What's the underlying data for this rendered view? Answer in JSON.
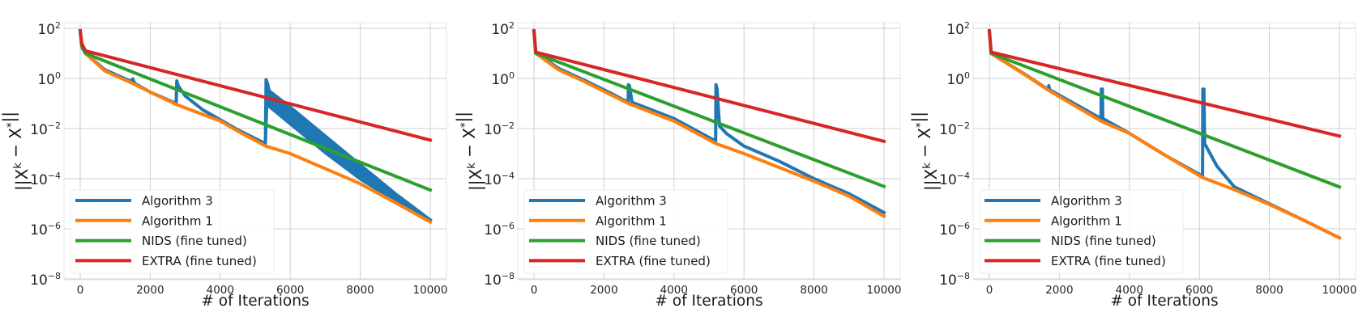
{
  "chart_data": [
    {
      "type": "line",
      "yscale": "log",
      "xlabel": "# of Iterations",
      "ylabel": "||X^k − X^*||",
      "xlim": [
        -450,
        10450
      ],
      "ylim": [
        1e-08,
        170
      ],
      "xticks": [
        0,
        2000,
        4000,
        6000,
        8000,
        10000
      ],
      "xtick_labels": [
        "0",
        "2000",
        "4000",
        "6000",
        "8000",
        "10000"
      ],
      "yticks_log10": [
        2,
        0,
        -2,
        -4,
        -6,
        -8
      ],
      "ytick_labels": [
        "10^2",
        "10^0",
        "10^-2",
        "10^-4",
        "10^-6",
        "10^-8"
      ],
      "grid": true,
      "legend_position": "lower-left",
      "series": [
        {
          "name": "Algorithm 3",
          "color": "#1f77b4",
          "points_log10y": [
            [
              0,
              1.9
            ],
            [
              60,
              1.2
            ],
            [
              150,
              1.0
            ],
            [
              700,
              0.35
            ],
            [
              1450,
              -0.12
            ],
            [
              1500,
              -0.02
            ],
            [
              1560,
              -0.2
            ],
            [
              2000,
              -0.55
            ],
            [
              2740,
              -1.0
            ],
            [
              2760,
              -0.1
            ],
            [
              2800,
              -0.3
            ],
            [
              3000,
              -0.7
            ],
            [
              3500,
              -1.25
            ],
            [
              4000,
              -1.65
            ],
            [
              4500,
              -2.05
            ],
            [
              5290,
              -2.6
            ],
            [
              5310,
              -0.05
            ],
            [
              5350,
              -0.2
            ],
            [
              5400,
              -0.5
            ],
            [
              6000,
              -1.15
            ],
            [
              7000,
              -2.3
            ],
            [
              8000,
              -3.45
            ],
            [
              9000,
              -4.6
            ],
            [
              10000,
              -5.65
            ]
          ],
          "oscillation_band_log10y": {
            "x": [
              5310,
              5350,
              6000,
              7000,
              8000,
              9000,
              10000
            ],
            "lower": [
              -2.6,
              -1.1,
              -1.85,
              -3.0,
              -4.05,
              -4.9,
              -5.7
            ]
          }
        },
        {
          "name": "Algorithm 1",
          "color": "#ff7f0e",
          "points_log10y": [
            [
              0,
              1.9
            ],
            [
              60,
              1.25
            ],
            [
              150,
              1.0
            ],
            [
              700,
              0.3
            ],
            [
              1500,
              -0.2
            ],
            [
              2000,
              -0.55
            ],
            [
              2750,
              -1.04
            ],
            [
              4000,
              -1.7
            ],
            [
              4500,
              -2.1
            ],
            [
              5300,
              -2.7
            ],
            [
              6000,
              -3.0
            ],
            [
              8000,
              -4.2
            ],
            [
              9000,
              -4.95
            ],
            [
              10000,
              -5.73
            ]
          ]
        },
        {
          "name": "NIDS (fine tuned)",
          "color": "#2ca02c",
          "points_log10y": [
            [
              0,
              1.9
            ],
            [
              40,
              1.3
            ],
            [
              150,
              1.0
            ],
            [
              10000,
              -4.45
            ]
          ]
        },
        {
          "name": "EXTRA (fine tuned)",
          "color": "#d62728",
          "points_log10y": [
            [
              0,
              1.9
            ],
            [
              40,
              1.4
            ],
            [
              150,
              1.1
            ],
            [
              10000,
              -2.46
            ]
          ]
        }
      ]
    },
    {
      "type": "line",
      "yscale": "log",
      "xlabel": "# of Iterations",
      "ylabel": "||X^k − X^*||",
      "xlim": [
        -450,
        10450
      ],
      "ylim": [
        1e-08,
        170
      ],
      "xticks": [
        0,
        2000,
        4000,
        6000,
        8000,
        10000
      ],
      "xtick_labels": [
        "0",
        "2000",
        "4000",
        "6000",
        "8000",
        "10000"
      ],
      "yticks_log10": [
        2,
        0,
        -2,
        -4,
        -6,
        -8
      ],
      "ytick_labels": [
        "10^2",
        "10^0",
        "10^-2",
        "10^-4",
        "10^-6",
        "10^-8"
      ],
      "grid": true,
      "legend_position": "lower-left",
      "series": [
        {
          "name": "Algorithm 3",
          "color": "#1f77b4",
          "points_log10y": [
            [
              0,
              1.9
            ],
            [
              50,
              1.05
            ],
            [
              700,
              0.4
            ],
            [
              1400,
              -0.05
            ],
            [
              2000,
              -0.45
            ],
            [
              2690,
              -0.95
            ],
            [
              2700,
              -0.25
            ],
            [
              2730,
              -0.3
            ],
            [
              2800,
              -0.95
            ],
            [
              4000,
              -1.6
            ],
            [
              5190,
              -2.5
            ],
            [
              5200,
              -0.25
            ],
            [
              5230,
              -0.4
            ],
            [
              5300,
              -1.9
            ],
            [
              5500,
              -2.2
            ],
            [
              6000,
              -2.7
            ],
            [
              7000,
              -3.3
            ],
            [
              8000,
              -4.0
            ],
            [
              9000,
              -4.6
            ],
            [
              10000,
              -5.35
            ]
          ]
        },
        {
          "name": "Algorithm 1",
          "color": "#ff7f0e",
          "points_log10y": [
            [
              0,
              1.9
            ],
            [
              50,
              1.0
            ],
            [
              700,
              0.35
            ],
            [
              1400,
              -0.1
            ],
            [
              2700,
              -1.0
            ],
            [
              4000,
              -1.7
            ],
            [
              5200,
              -2.6
            ],
            [
              6000,
              -3.0
            ],
            [
              8000,
              -4.1
            ],
            [
              9000,
              -4.7
            ],
            [
              10000,
              -5.5
            ]
          ]
        },
        {
          "name": "NIDS (fine tuned)",
          "color": "#2ca02c",
          "points_log10y": [
            [
              0,
              1.9
            ],
            [
              30,
              1.3
            ],
            [
              50,
              1.0
            ],
            [
              10000,
              -4.31
            ]
          ]
        },
        {
          "name": "EXTRA (fine tuned)",
          "color": "#d62728",
          "points_log10y": [
            [
              0,
              1.9
            ],
            [
              30,
              1.4
            ],
            [
              50,
              1.05
            ],
            [
              10000,
              -2.51
            ]
          ]
        }
      ]
    },
    {
      "type": "line",
      "yscale": "log",
      "xlabel": "# of Iterations",
      "ylabel": "||X^k − X^*||",
      "xlim": [
        -450,
        10450
      ],
      "ylim": [
        1e-08,
        170
      ],
      "xticks": [
        0,
        2000,
        4000,
        6000,
        8000,
        10000
      ],
      "xtick_labels": [
        "0",
        "2000",
        "4000",
        "6000",
        "8000",
        "10000"
      ],
      "yticks_log10": [
        2,
        0,
        -2,
        -4,
        -6,
        -8
      ],
      "ytick_labels": [
        "10^2",
        "10^0",
        "10^-2",
        "10^-4",
        "10^-6",
        "10^-8"
      ],
      "grid": true,
      "legend_position": "lower-left",
      "series": [
        {
          "name": "Algorithm 3",
          "color": "#1f77b4",
          "points_log10y": [
            [
              0,
              1.9
            ],
            [
              50,
              1.0
            ],
            [
              1000,
              0.18
            ],
            [
              1690,
              -0.45
            ],
            [
              1700,
              -0.29
            ],
            [
              1720,
              -0.45
            ],
            [
              3190,
              -1.6
            ],
            [
              3200,
              -0.43
            ],
            [
              3230,
              -0.43
            ],
            [
              3240,
              -1.6
            ],
            [
              4000,
              -2.19
            ],
            [
              5000,
              -3.05
            ],
            [
              6090,
              -3.9
            ],
            [
              6100,
              -0.43
            ],
            [
              6130,
              -0.43
            ],
            [
              6150,
              -2.6
            ],
            [
              6500,
              -3.5
            ],
            [
              7000,
              -4.33
            ],
            [
              8000,
              -5.0
            ],
            [
              9000,
              -5.67
            ],
            [
              10000,
              -6.36
            ]
          ]
        },
        {
          "name": "Algorithm 1",
          "color": "#ff7f0e",
          "points_log10y": [
            [
              0,
              1.9
            ],
            [
              50,
              1.0
            ],
            [
              1000,
              0.16
            ],
            [
              1700,
              -0.48
            ],
            [
              3200,
              -1.71
            ],
            [
              4000,
              -2.19
            ],
            [
              5000,
              -3.05
            ],
            [
              6100,
              -3.96
            ],
            [
              7000,
              -4.44
            ],
            [
              8000,
              -5.03
            ],
            [
              9000,
              -5.67
            ],
            [
              10000,
              -6.36
            ]
          ]
        },
        {
          "name": "NIDS (fine tuned)",
          "color": "#2ca02c",
          "points_log10y": [
            [
              0,
              1.9
            ],
            [
              30,
              1.3
            ],
            [
              50,
              1.0
            ],
            [
              10000,
              -4.33
            ]
          ]
        },
        {
          "name": "EXTRA (fine tuned)",
          "color": "#d62728",
          "points_log10y": [
            [
              0,
              1.9
            ],
            [
              30,
              1.4
            ],
            [
              50,
              1.05
            ],
            [
              10000,
              -2.3
            ]
          ]
        }
      ]
    }
  ]
}
